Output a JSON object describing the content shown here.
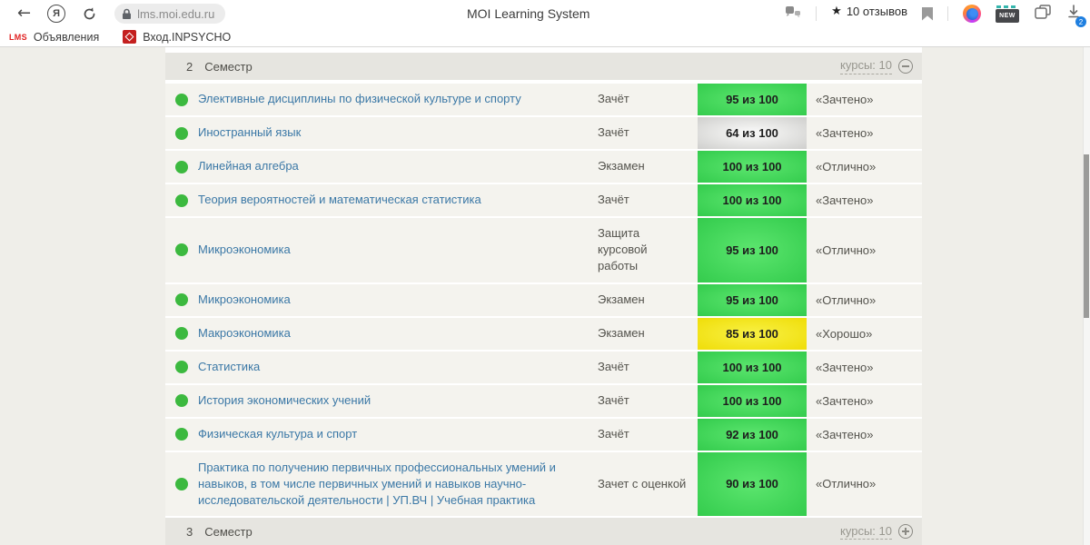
{
  "browser": {
    "back_icon": "←",
    "url": "lms.moi.edu.ru",
    "page_title": "MOI Learning System",
    "reviews": {
      "star": "★",
      "label": "10 отзывов"
    },
    "new_badge": "NEW",
    "download_count": "2",
    "bookmarks": [
      {
        "favicon_text": "LMS",
        "label": "Объявления"
      },
      {
        "favicon_text": "",
        "label": "Вход.INPSYCHO"
      }
    ]
  },
  "colors": {
    "badge_green": "#3dd255",
    "badge_gray": "#cfcfcd",
    "badge_yellow": "#f0df0e",
    "status_dot_green": "#3cb93f",
    "link_blue": "#3b78a6",
    "reviews_green": "#5fbf61",
    "reviews_red": "#e3574e",
    "download_badge_blue": "#1e7fe0"
  },
  "table": {
    "section_top": {
      "number": "2",
      "title": "Семестр",
      "courses_label": "курсы: 10",
      "toggle": "minus"
    },
    "section_bottom": {
      "number": "3",
      "title": "Семестр",
      "courses_label": "курсы: 10",
      "toggle": "plus"
    },
    "rows": [
      {
        "name": "Элективные дисциплины по физической культуре и спорту",
        "type": "Зачёт",
        "score": "95 из 100",
        "score_style": "green",
        "grade": "«Зачтено»"
      },
      {
        "name": "Иностранный язык",
        "type": "Зачёт",
        "score": "64 из 100",
        "score_style": "gray",
        "grade": "«Зачтено»"
      },
      {
        "name": "Линейная алгебра",
        "type": "Экзамен",
        "score": "100 из 100",
        "score_style": "green",
        "grade": "«Отлично»"
      },
      {
        "name": "Теория вероятностей и математическая статистика",
        "type": "Зачёт",
        "score": "100 из 100",
        "score_style": "green",
        "grade": "«Зачтено»"
      },
      {
        "name": "Микроэкономика",
        "type": "Защита курсовой работы",
        "score": "95 из 100",
        "score_style": "green",
        "grade": "«Отлично»"
      },
      {
        "name": "Микроэкономика",
        "type": "Экзамен",
        "score": "95 из 100",
        "score_style": "green",
        "grade": "«Отлично»"
      },
      {
        "name": "Макроэкономика",
        "type": "Экзамен",
        "score": "85 из 100",
        "score_style": "yellow",
        "grade": "«Хорошо»"
      },
      {
        "name": "Статистика",
        "type": "Зачёт",
        "score": "100 из 100",
        "score_style": "green",
        "grade": "«Зачтено»"
      },
      {
        "name": "История экономических учений",
        "type": "Зачёт",
        "score": "100 из 100",
        "score_style": "green",
        "grade": "«Зачтено»"
      },
      {
        "name": "Физическая культура и спорт",
        "type": "Зачёт",
        "score": "92 из 100",
        "score_style": "green",
        "grade": "«Зачтено»"
      },
      {
        "name": "Практика по получению первичных профессиональных умений и навыков, в том числе первичных умений и навыков научно-исследовательской деятельности | УП.ВЧ | Учебная практика",
        "type": "Зачет с оценкой",
        "score": "90 из 100",
        "score_style": "green",
        "grade": "«Отлично»"
      }
    ]
  }
}
